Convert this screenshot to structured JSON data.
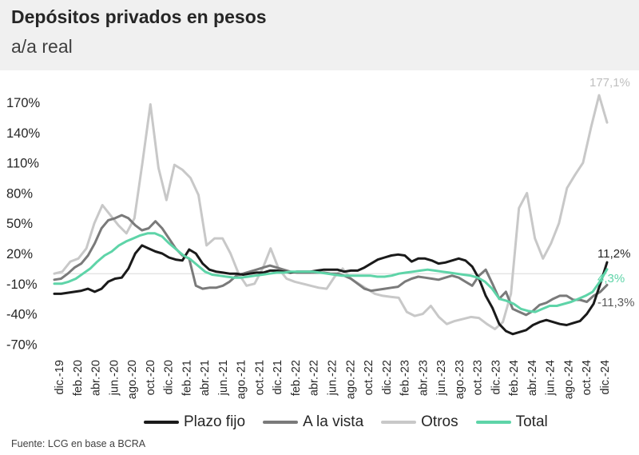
{
  "header": {
    "title": "Depósitos privados en pesos",
    "subtitle": "a/a real"
  },
  "source": "Fuente:  LCG en  base a  BCRA",
  "chart_data": {
    "type": "line",
    "title": "Depósitos privados en pesos",
    "subtitle": "a/a real",
    "ylabel": "",
    "xlabel": "",
    "ylim": [
      -70,
      177
    ],
    "y_ticks": [
      170,
      140,
      110,
      80,
      50,
      20,
      -10,
      -40,
      -70
    ],
    "y_tick_labels": [
      "170%",
      "140%",
      "110%",
      "80%",
      "50%",
      "20%",
      "-10%",
      "-40%",
      "-70%"
    ],
    "x_tick_labels": [
      "dic.-19",
      "feb.-20",
      "abr.-20",
      "jun.-20",
      "ago.-20",
      "oct.-20",
      "dic.-20",
      "feb.-21",
      "abr.-21",
      "jun.-21",
      "ago.-21",
      "oct.-21",
      "dic.-21",
      "feb.-22",
      "abr.-22",
      "jun.-22",
      "ago.-22",
      "oct.-22",
      "dic.-22",
      "feb.-23",
      "abr.-23",
      "jun.-23",
      "ago.-23",
      "oct.-23",
      "dic.-23",
      "feb.-24",
      "abr.-24",
      "jun.-24",
      "ago.-24",
      "oct.-24",
      "dic.-24"
    ],
    "legend_position": "bottom",
    "series": [
      {
        "name": "Plazo fijo",
        "color": "#1a1a1a",
        "width": 3,
        "values": [
          -20,
          -20,
          -19,
          -18,
          -17,
          -15,
          -18,
          -15,
          -8,
          -5,
          -4,
          5,
          20,
          28,
          25,
          22,
          20,
          16,
          14,
          13,
          24,
          20,
          10,
          4,
          2,
          1,
          0,
          0,
          -1,
          0,
          1,
          1,
          3,
          3,
          2,
          1,
          2,
          2,
          2,
          3,
          4,
          4,
          4,
          2,
          3,
          3,
          6,
          10,
          14,
          16,
          18,
          19,
          18,
          12,
          15,
          15,
          13,
          10,
          11,
          13,
          15,
          13,
          7,
          -5,
          -22,
          -34,
          -50,
          -57,
          -60,
          -58,
          -56,
          -51,
          -48,
          -46,
          -48,
          -50,
          -51,
          -49,
          -47,
          -40,
          -30,
          -10,
          11.2
        ]
      },
      {
        "name": "A la vista",
        "color": "#7a7a7a",
        "width": 3,
        "values": [
          -6,
          -5,
          0,
          6,
          10,
          18,
          30,
          45,
          53,
          55,
          58,
          55,
          48,
          43,
          45,
          52,
          45,
          35,
          25,
          18,
          15,
          -12,
          -15,
          -14,
          -14,
          -12,
          -8,
          -2,
          0,
          2,
          4,
          6,
          8,
          6,
          4,
          2,
          1,
          1,
          1,
          1,
          1,
          0,
          0,
          -2,
          -5,
          -10,
          -15,
          -17,
          -16,
          -15,
          -14,
          -13,
          -8,
          -5,
          -3,
          -4,
          -5,
          -6,
          -4,
          -2,
          -4,
          -8,
          -12,
          -2,
          4,
          -10,
          -25,
          -18,
          -35,
          -38,
          -41,
          -37,
          -31,
          -29,
          -25,
          -22,
          -22,
          -26,
          -26,
          -28,
          -22,
          -18,
          -11.3
        ]
      },
      {
        "name": "Otros",
        "color": "#c8c8c8",
        "width": 3,
        "values": [
          0,
          2,
          12,
          15,
          25,
          50,
          68,
          58,
          48,
          40,
          55,
          110,
          168,
          105,
          73,
          108,
          103,
          95,
          78,
          28,
          35,
          35,
          20,
          0,
          -12,
          -10,
          5,
          25,
          5,
          -5,
          -8,
          -10,
          -12,
          -14,
          -15,
          -3,
          5,
          -5,
          -10,
          -15,
          -20,
          -22,
          -23,
          -24,
          -38,
          -42,
          -40,
          -32,
          -43,
          -50,
          -47,
          -45,
          -43,
          -44,
          -50,
          -55,
          -48,
          -20,
          65,
          80,
          35,
          15,
          30,
          50,
          85,
          98,
          110,
          145,
          177.1,
          150
        ]
      },
      {
        "name": "Total",
        "color": "#5ed4a8",
        "width": 3,
        "values": [
          -10,
          -10,
          -8,
          -5,
          0,
          5,
          12,
          18,
          22,
          28,
          32,
          35,
          38,
          40,
          40,
          37,
          30,
          24,
          18,
          14,
          8,
          2,
          -1,
          -2,
          -3,
          -4,
          -4,
          -3,
          -2,
          -1,
          0,
          1,
          1,
          2,
          2,
          2,
          2,
          1,
          0,
          -1,
          -2,
          -2,
          -2,
          -2,
          -2,
          -3,
          -3,
          -2,
          0,
          1,
          2,
          3,
          4,
          3,
          2,
          1,
          0,
          -1,
          -2,
          -4,
          -8,
          -15,
          -25,
          -27,
          -30,
          -35,
          -37,
          -38,
          -35,
          -32,
          -32,
          -30,
          -28,
          -25,
          -22,
          -18,
          -8,
          4.3
        ]
      }
    ],
    "annotations": [
      {
        "series": "Otros",
        "text": "177,1%",
        "value": 177.1
      },
      {
        "series": "Plazo fijo",
        "text": "11,2%",
        "value": 11.2
      },
      {
        "series": "Total",
        "text": "4,3%",
        "value": 4.3
      },
      {
        "series": "A la vista",
        "text": "-11,3%",
        "value": -11.3
      }
    ]
  }
}
